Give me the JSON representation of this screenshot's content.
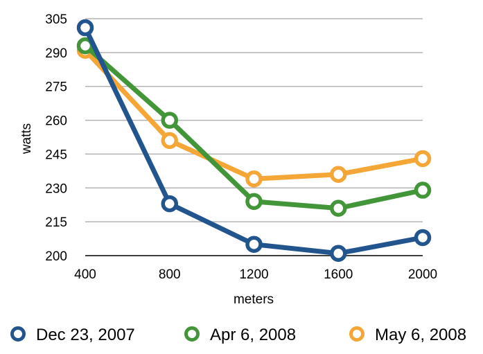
{
  "chart_data": {
    "type": "line",
    "title": "",
    "xlabel": "meters",
    "ylabel": "watts",
    "categories": [
      "400",
      "800",
      "1200",
      "1600",
      "2000"
    ],
    "x": [
      400,
      800,
      1200,
      1600,
      2000
    ],
    "ylim": [
      200,
      305
    ],
    "yticks": [
      "200",
      "215",
      "230",
      "245",
      "260",
      "275",
      "290",
      "305"
    ],
    "grid": true,
    "legend_position": "bottom",
    "series": [
      {
        "name": "Dec 23, 2007",
        "color": "#22548e",
        "values": [
          301,
          223,
          205,
          201,
          208
        ]
      },
      {
        "name": "Apr 6, 2008",
        "color": "#43953a",
        "values": [
          293,
          260,
          224,
          221,
          229
        ]
      },
      {
        "name": "May 6, 2008",
        "color": "#f4a637",
        "values": [
          291,
          251,
          234,
          236,
          243
        ]
      }
    ]
  }
}
